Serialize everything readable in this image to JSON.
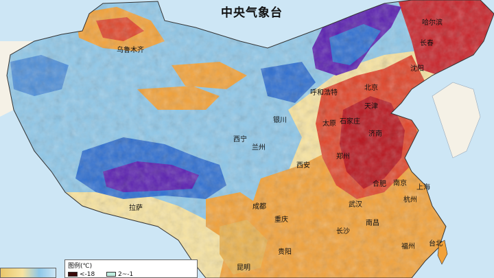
{
  "title": "中央气象台",
  "cities": [
    {
      "id": "urumqi",
      "name": "乌鲁木齐"
    },
    {
      "id": "harbin",
      "name": "哈尔滨"
    },
    {
      "id": "changchun",
      "name": "长春"
    },
    {
      "id": "shenyang",
      "name": "沈阳"
    },
    {
      "id": "hohhot",
      "name": "呼和浩特"
    },
    {
      "id": "beijing",
      "name": "北京"
    },
    {
      "id": "tianjin",
      "name": "天津"
    },
    {
      "id": "shijiazhuang",
      "name": "石家庄"
    },
    {
      "id": "taiyuan",
      "name": "太原"
    },
    {
      "id": "jinan",
      "name": "济南"
    },
    {
      "id": "yinchuan",
      "name": "银川"
    },
    {
      "id": "xining",
      "name": "西宁"
    },
    {
      "id": "lanzhou",
      "name": "兰州"
    },
    {
      "id": "zhengzhou",
      "name": "郑州"
    },
    {
      "id": "xian",
      "name": "西安"
    },
    {
      "id": "hefei",
      "name": "合肥"
    },
    {
      "id": "nanjing",
      "name": "南京"
    },
    {
      "id": "shanghai",
      "name": "上海"
    },
    {
      "id": "hangzhou",
      "name": "杭州"
    },
    {
      "id": "wuhan",
      "name": "武汉"
    },
    {
      "id": "chengdu",
      "name": "成都"
    },
    {
      "id": "lhasa",
      "name": "拉萨"
    },
    {
      "id": "chongqing",
      "name": "重庆"
    },
    {
      "id": "changsha",
      "name": "长沙"
    },
    {
      "id": "nanchang",
      "name": "南昌"
    },
    {
      "id": "fuzhou",
      "name": "福州"
    },
    {
      "id": "guiyang",
      "name": "贵阳"
    },
    {
      "id": "taibei",
      "name": "台北"
    },
    {
      "id": "kunming",
      "name": "昆明"
    }
  ],
  "legend": {
    "title": "图例(℃)",
    "items": [
      {
        "label": "<-18",
        "color": "#3b0a0a"
      },
      {
        "label": "2~-1",
        "color": "#bfeee0"
      }
    ]
  },
  "colors": {
    "ocean": "#cde6f5",
    "land_outside": "#e9d9a8",
    "cold_deep": "#5a1fb0",
    "cold": "#2f6fd0",
    "cool": "#8ec7e8",
    "mild": "#f7e3a0",
    "warm": "#f2a23a",
    "hot": "#e0452a",
    "very_hot": "#b8151e"
  }
}
